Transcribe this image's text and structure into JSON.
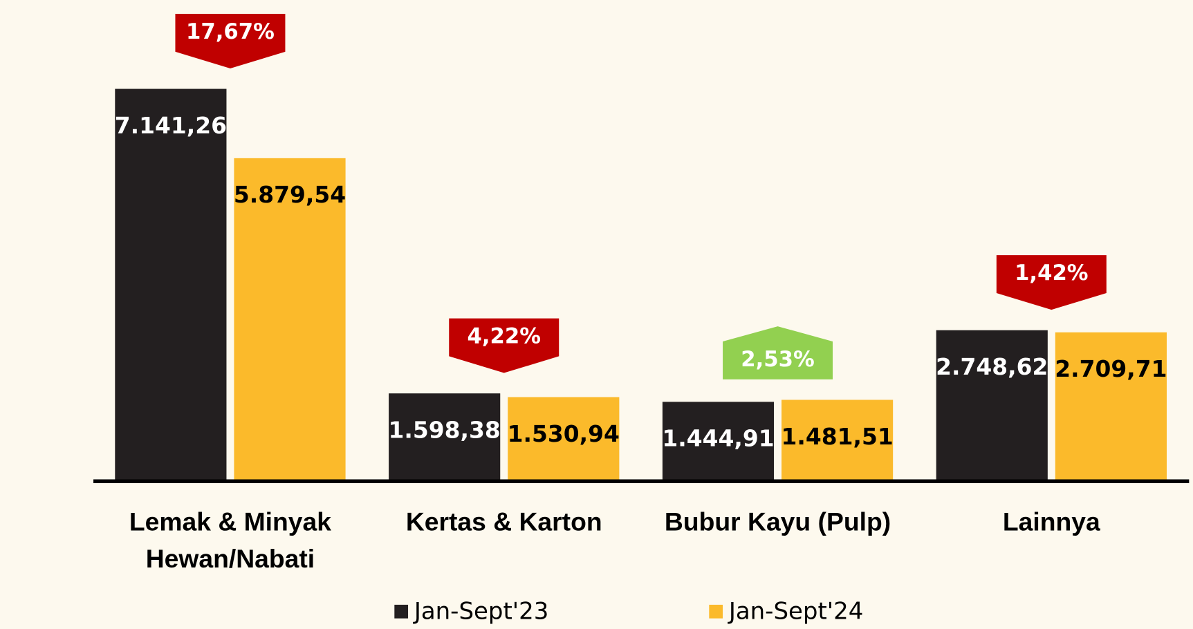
{
  "chart_data": {
    "type": "bar",
    "categories": [
      "Lemak & Minyak Hewan/Nabati",
      "Kertas & Karton",
      "Bubur Kayu (Pulp)",
      "Lainnya"
    ],
    "series": [
      {
        "name": "Jan-Sept'23",
        "color": "#231f20",
        "label_color": "#ffffff",
        "values": [
          7141.26,
          1598.38,
          1444.91,
          2748.62
        ],
        "value_labels": [
          "7.141,26",
          "1.598,38",
          "1.444,91",
          "2.748,62"
        ]
      },
      {
        "name": "Jan-Sept'24",
        "color": "#fbba2b",
        "label_color": "#000000",
        "values": [
          5879.54,
          1530.94,
          1481.51,
          2709.71
        ],
        "value_labels": [
          "5.879,54",
          "1.530,94",
          "1.481,51",
          "2.709,71"
        ]
      }
    ],
    "changes": [
      {
        "value": 17.67,
        "label": "17,67%",
        "direction": "down",
        "color": "#c00000"
      },
      {
        "value": 4.22,
        "label": "4,22%",
        "direction": "down",
        "color": "#c00000"
      },
      {
        "value": 2.53,
        "label": "2,53%",
        "direction": "up",
        "color": "#92d050"
      },
      {
        "value": 1.42,
        "label": "1,42%",
        "direction": "down",
        "color": "#c00000"
      }
    ],
    "ylim": [
      0,
      8000
    ],
    "legend": "bottom"
  }
}
